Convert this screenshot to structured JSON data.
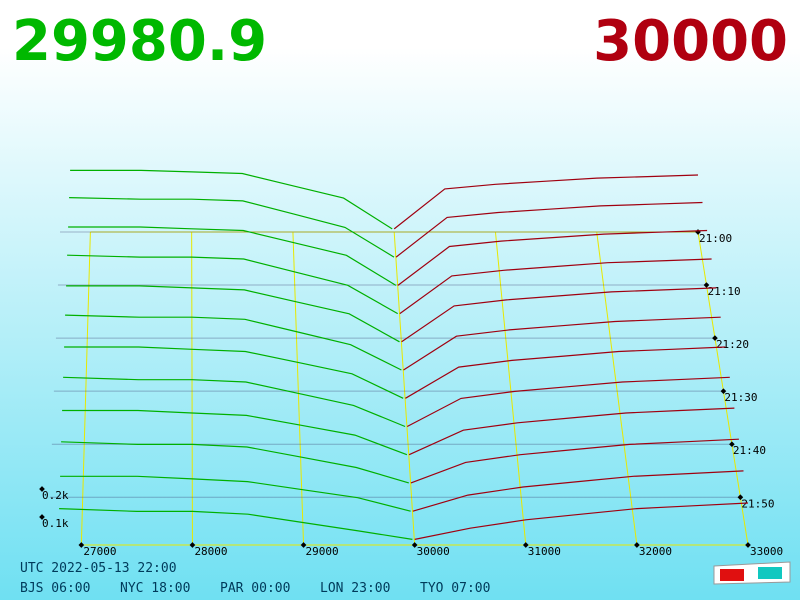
{
  "header": {
    "bid_price": "29980.9",
    "ask_price": "30000"
  },
  "chart_data": {
    "type": "depth3d",
    "bid_color": "#00b000",
    "ask_color": "#a00010",
    "grid_color": "#e8e800",
    "xlim": [
      26700,
      33000
    ],
    "xticks": [
      27000,
      28000,
      29000,
      30000,
      31000,
      32000,
      33000
    ],
    "zticks": [
      {
        "value": 0.1,
        "label": "0.1k"
      },
      {
        "value": 0.2,
        "label": "0.2k"
      }
    ],
    "times": [
      "21:00",
      "21:10",
      "21:20",
      "21:30",
      "21:40",
      "21:50"
    ],
    "bid_prices": [
      26800,
      27500,
      28000,
      28500,
      29000,
      29500,
      29980
    ],
    "ask_prices": [
      30000,
      30500,
      31000,
      31500,
      32000,
      32500,
      33000
    ],
    "rows": [
      {
        "bids": [
          0.4,
          0.4,
          0.39,
          0.38,
          0.3,
          0.22,
          0.02
        ],
        "asks": [
          0.02,
          0.28,
          0.31,
          0.33,
          0.35,
          0.36,
          0.37
        ]
      },
      {
        "bids": [
          0.38,
          0.37,
          0.37,
          0.36,
          0.28,
          0.2,
          0.02
        ],
        "asks": [
          0.02,
          0.26,
          0.29,
          0.31,
          0.33,
          0.34,
          0.35
        ]
      },
      {
        "bids": [
          0.35,
          0.35,
          0.34,
          0.33,
          0.26,
          0.19,
          0.02
        ],
        "asks": [
          0.02,
          0.24,
          0.27,
          0.29,
          0.31,
          0.32,
          0.33
        ]
      },
      {
        "bids": [
          0.33,
          0.32,
          0.32,
          0.31,
          0.24,
          0.17,
          0.02
        ],
        "asks": [
          0.02,
          0.22,
          0.25,
          0.27,
          0.29,
          0.3,
          0.31
        ]
      },
      {
        "bids": [
          0.3,
          0.3,
          0.29,
          0.28,
          0.22,
          0.16,
          0.02
        ],
        "asks": [
          0.02,
          0.2,
          0.23,
          0.25,
          0.27,
          0.28,
          0.29
        ]
      },
      {
        "bids": [
          0.28,
          0.27,
          0.27,
          0.26,
          0.2,
          0.14,
          0.02
        ],
        "asks": [
          0.02,
          0.18,
          0.21,
          0.23,
          0.25,
          0.26,
          0.27
        ]
      },
      {
        "bids": [
          0.25,
          0.25,
          0.24,
          0.23,
          0.18,
          0.13,
          0.02
        ],
        "asks": [
          0.02,
          0.16,
          0.19,
          0.21,
          0.23,
          0.24,
          0.25
        ]
      },
      {
        "bids": [
          0.23,
          0.22,
          0.22,
          0.21,
          0.16,
          0.11,
          0.02
        ],
        "asks": [
          0.02,
          0.14,
          0.17,
          0.19,
          0.21,
          0.22,
          0.23
        ]
      },
      {
        "bids": [
          0.2,
          0.2,
          0.19,
          0.18,
          0.14,
          0.1,
          0.02
        ],
        "asks": [
          0.02,
          0.12,
          0.15,
          0.17,
          0.19,
          0.2,
          0.21
        ]
      },
      {
        "bids": [
          0.18,
          0.17,
          0.17,
          0.16,
          0.12,
          0.08,
          0.02
        ],
        "asks": [
          0.02,
          0.1,
          0.13,
          0.15,
          0.17,
          0.18,
          0.19
        ]
      },
      {
        "bids": [
          0.15,
          0.15,
          0.14,
          0.13,
          0.1,
          0.07,
          0.02
        ],
        "asks": [
          0.02,
          0.08,
          0.11,
          0.13,
          0.15,
          0.16,
          0.17
        ]
      },
      {
        "bids": [
          0.13,
          0.12,
          0.12,
          0.11,
          0.08,
          0.05,
          0.02
        ],
        "asks": [
          0.02,
          0.06,
          0.09,
          0.11,
          0.13,
          0.14,
          0.15
        ]
      }
    ]
  },
  "footer": {
    "utc": "UTC 2022-05-13 22:00",
    "zones": [
      "BJS 06:00",
      "NYC 18:00",
      "PAR 00:00",
      "LON 23:00",
      "TYO 07:00"
    ]
  }
}
